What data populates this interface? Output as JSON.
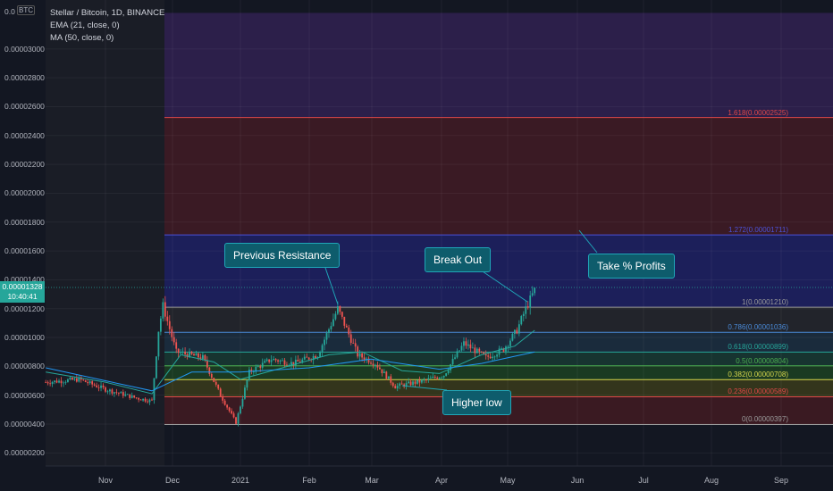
{
  "header": {
    "title": "Stellar / Bitcoin, 1D, BINANCE",
    "ema": "EMA (21, close, 0)",
    "ma": "MA (50, close, 0)",
    "currency_badge": "BTC",
    "axis_prefix": "0.0"
  },
  "price_tag": {
    "price": "0.00001328",
    "countdown": "10:40:41"
  },
  "y_axis": [
    {
      "label": "0.00003000",
      "value": 3000
    },
    {
      "label": "0.00002800",
      "value": 2800
    },
    {
      "label": "0.00002600",
      "value": 2600
    },
    {
      "label": "0.00002400",
      "value": 2400
    },
    {
      "label": "0.00002200",
      "value": 2200
    },
    {
      "label": "0.00002000",
      "value": 2000
    },
    {
      "label": "0.00001800",
      "value": 1800
    },
    {
      "label": "0.00001600",
      "value": 1600
    },
    {
      "label": "0.00001400",
      "value": 1400
    },
    {
      "label": "0.00001200",
      "value": 1200
    },
    {
      "label": "0.00001000",
      "value": 1000
    },
    {
      "label": "0.00000800",
      "value": 800
    },
    {
      "label": "0.00000600",
      "value": 600
    },
    {
      "label": "0.00000400",
      "value": 400
    },
    {
      "label": "0.00000200",
      "value": 200
    }
  ],
  "x_axis": [
    "Nov",
    "Dec",
    "2021",
    "Feb",
    "Mar",
    "Apr",
    "May",
    "Jun",
    "Jul",
    "Aug",
    "Sep"
  ],
  "fib_levels": [
    {
      "ratio": "1.618",
      "label": "1.618(0.00002525)",
      "value": 2525,
      "color": "#e04848"
    },
    {
      "ratio": "1.272",
      "label": "1.272(0.00001711)",
      "value": 1711,
      "color": "#4c52d8"
    },
    {
      "ratio": "1",
      "label": "1(0.00001210)",
      "value": 1210,
      "color": "#9a9a9a"
    },
    {
      "ratio": "0.786",
      "label": "0.786(0.00001036)",
      "value": 1036,
      "color": "#4a8ad8"
    },
    {
      "ratio": "0.618",
      "label": "0.618(0.00000899)",
      "value": 899,
      "color": "#26a69a"
    },
    {
      "ratio": "0.5",
      "label": "0.5(0.00000804)",
      "value": 804,
      "color": "#4caf50"
    },
    {
      "ratio": "0.382",
      "label": "0.382(0.00000708)",
      "value": 708,
      "color": "#d8d84c"
    },
    {
      "ratio": "0.236",
      "label": "0.236(0.00000589)",
      "value": 589,
      "color": "#e04848"
    },
    {
      "ratio": "0",
      "label": "0(0.00000397)",
      "value": 397,
      "color": "#9a9a9a"
    }
  ],
  "annotations": {
    "previous_resistance": "Previous Resistance",
    "break_out": "Break Out",
    "take_profits": "Take % Profits",
    "higher_low": "Higher low"
  },
  "colors": {
    "background": "#131722",
    "up": "#26a69a",
    "down": "#ef5350",
    "ema": "#26a69a",
    "ma": "#2196f3"
  },
  "chart_data": {
    "type": "candlestick",
    "title": "Stellar / Bitcoin, 1D, BINANCE",
    "ylabel": "",
    "xlabel": "",
    "ylim": [
      100,
      3250
    ],
    "grid": true,
    "price_path": [
      {
        "x": "Oct 05",
        "y": 690
      },
      {
        "x": "Oct 20",
        "y": 710
      },
      {
        "x": "Nov 01",
        "y": 640
      },
      {
        "x": "Nov 15",
        "y": 580
      },
      {
        "x": "Nov 22",
        "y": 560
      },
      {
        "x": "Nov 25",
        "y": 1050
      },
      {
        "x": "Nov 27",
        "y": 1220
      },
      {
        "x": "Dec 03",
        "y": 900
      },
      {
        "x": "Dec 15",
        "y": 860
      },
      {
        "x": "Dec 23",
        "y": 600
      },
      {
        "x": "Dec 30",
        "y": 410
      },
      {
        "x": "Jan 05",
        "y": 760
      },
      {
        "x": "Jan 15",
        "y": 850
      },
      {
        "x": "Jan 25",
        "y": 820
      },
      {
        "x": "Feb 05",
        "y": 880
      },
      {
        "x": "Feb 14",
        "y": 1200
      },
      {
        "x": "Feb 23",
        "y": 880
      },
      {
        "x": "Mar 03",
        "y": 820
      },
      {
        "x": "Mar 12",
        "y": 660
      },
      {
        "x": "Mar 25",
        "y": 700
      },
      {
        "x": "Apr 03",
        "y": 740
      },
      {
        "x": "Apr 12",
        "y": 960
      },
      {
        "x": "Apr 22",
        "y": 860
      },
      {
        "x": "Apr 30",
        "y": 920
      },
      {
        "x": "May 06",
        "y": 1050
      },
      {
        "x": "May 10",
        "y": 1200
      },
      {
        "x": "May 14",
        "y": 1328
      }
    ],
    "ema": [
      {
        "x": "Oct 05",
        "y": 760
      },
      {
        "x": "Nov 01",
        "y": 690
      },
      {
        "x": "Nov 22",
        "y": 610
      },
      {
        "x": "Dec 05",
        "y": 880
      },
      {
        "x": "Dec 20",
        "y": 830
      },
      {
        "x": "Jan 01",
        "y": 710
      },
      {
        "x": "Jan 20",
        "y": 790
      },
      {
        "x": "Feb 10",
        "y": 880
      },
      {
        "x": "Feb 25",
        "y": 900
      },
      {
        "x": "Mar 15",
        "y": 770
      },
      {
        "x": "Apr 01",
        "y": 750
      },
      {
        "x": "Apr 20",
        "y": 880
      },
      {
        "x": "May 05",
        "y": 940
      },
      {
        "x": "May 14",
        "y": 1050
      }
    ],
    "ma": [
      {
        "x": "Oct 05",
        "y": 790
      },
      {
        "x": "Nov 01",
        "y": 700
      },
      {
        "x": "Nov 22",
        "y": 630
      },
      {
        "x": "Dec 10",
        "y": 760
      },
      {
        "x": "Jan 01",
        "y": 760
      },
      {
        "x": "Feb 01",
        "y": 790
      },
      {
        "x": "Mar 01",
        "y": 850
      },
      {
        "x": "Apr 01",
        "y": 780
      },
      {
        "x": "Apr 20",
        "y": 820
      },
      {
        "x": "May 14",
        "y": 900
      }
    ]
  }
}
